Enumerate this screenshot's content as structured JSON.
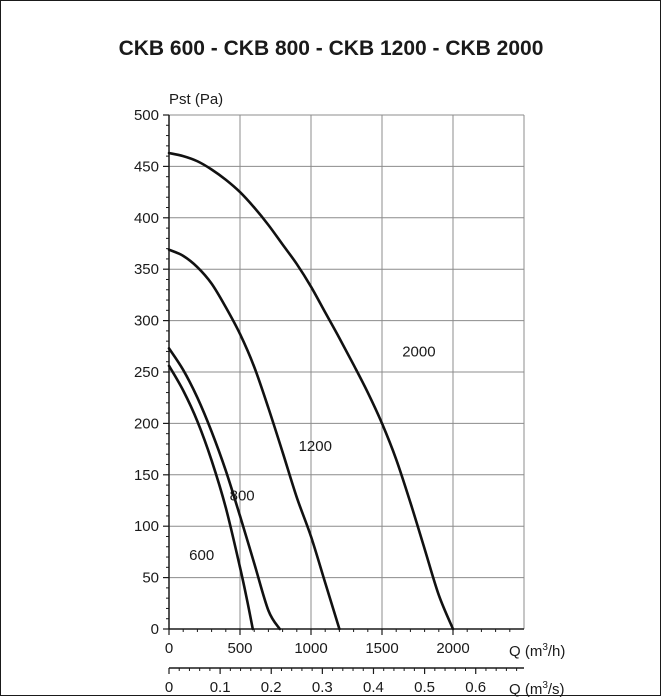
{
  "chart_data": {
    "type": "line",
    "title": "CKB 600 - CKB 800 - CKB 1200 - CKB 2000",
    "ylabel": "Pst (Pa)",
    "xlabel": "Q (m3/h)",
    "xlabel_parts": {
      "base": "Q (m",
      "sup": "3",
      "tail": "/h)"
    },
    "x2label": "Q (m3/s)",
    "x2label_parts": {
      "base": "Q (m",
      "sup": "3",
      "tail": "/s)"
    },
    "xlim": [
      0,
      2500
    ],
    "ylim": [
      0,
      500
    ],
    "x_ticks": [
      "0",
      "500",
      "1000",
      "1500",
      "2000"
    ],
    "x_tick_values": [
      0,
      500,
      1000,
      1500,
      2000
    ],
    "y_ticks": [
      "0",
      "50",
      "100",
      "150",
      "200",
      "250",
      "300",
      "350",
      "400",
      "450",
      "500"
    ],
    "y_tick_values": [
      0,
      50,
      100,
      150,
      200,
      250,
      300,
      350,
      400,
      450,
      500
    ],
    "x2_ticks": [
      "0",
      "0.1",
      "0.2",
      "0.3",
      "0.4",
      "0.5",
      "0.6"
    ],
    "x2_tick_values": [
      0,
      0.1,
      0.2,
      0.3,
      0.4,
      0.5,
      0.6
    ],
    "grid": true,
    "series": [
      {
        "name": "600",
        "label_at": [
          230,
          72
        ],
        "points": [
          [
            0,
            256
          ],
          [
            100,
            232
          ],
          [
            200,
            202
          ],
          [
            300,
            164
          ],
          [
            400,
            118
          ],
          [
            500,
            60
          ],
          [
            550,
            28
          ],
          [
            590,
            0
          ]
        ]
      },
      {
        "name": "800",
        "label_at": [
          515,
          130
        ],
        "points": [
          [
            0,
            273
          ],
          [
            100,
            252
          ],
          [
            200,
            225
          ],
          [
            300,
            192
          ],
          [
            400,
            154
          ],
          [
            500,
            110
          ],
          [
            600,
            64
          ],
          [
            700,
            18
          ],
          [
            780,
            0
          ]
        ]
      },
      {
        "name": "1200",
        "label_at": [
          1030,
          178
        ],
        "points": [
          [
            0,
            369
          ],
          [
            100,
            363
          ],
          [
            200,
            352
          ],
          [
            300,
            336
          ],
          [
            400,
            313
          ],
          [
            500,
            287
          ],
          [
            600,
            255
          ],
          [
            700,
            215
          ],
          [
            800,
            172
          ],
          [
            900,
            128
          ],
          [
            1000,
            90
          ],
          [
            1100,
            45
          ],
          [
            1200,
            0
          ]
        ]
      },
      {
        "name": "2000",
        "label_at": [
          1760,
          270
        ],
        "points": [
          [
            0,
            463
          ],
          [
            100,
            460
          ],
          [
            200,
            455
          ],
          [
            300,
            447
          ],
          [
            400,
            437
          ],
          [
            500,
            425
          ],
          [
            600,
            410
          ],
          [
            700,
            393
          ],
          [
            800,
            374
          ],
          [
            900,
            355
          ],
          [
            1000,
            333
          ],
          [
            1100,
            308
          ],
          [
            1200,
            283
          ],
          [
            1300,
            257
          ],
          [
            1400,
            230
          ],
          [
            1500,
            200
          ],
          [
            1600,
            165
          ],
          [
            1700,
            123
          ],
          [
            1800,
            78
          ],
          [
            1900,
            33
          ],
          [
            2000,
            0
          ]
        ]
      }
    ]
  }
}
